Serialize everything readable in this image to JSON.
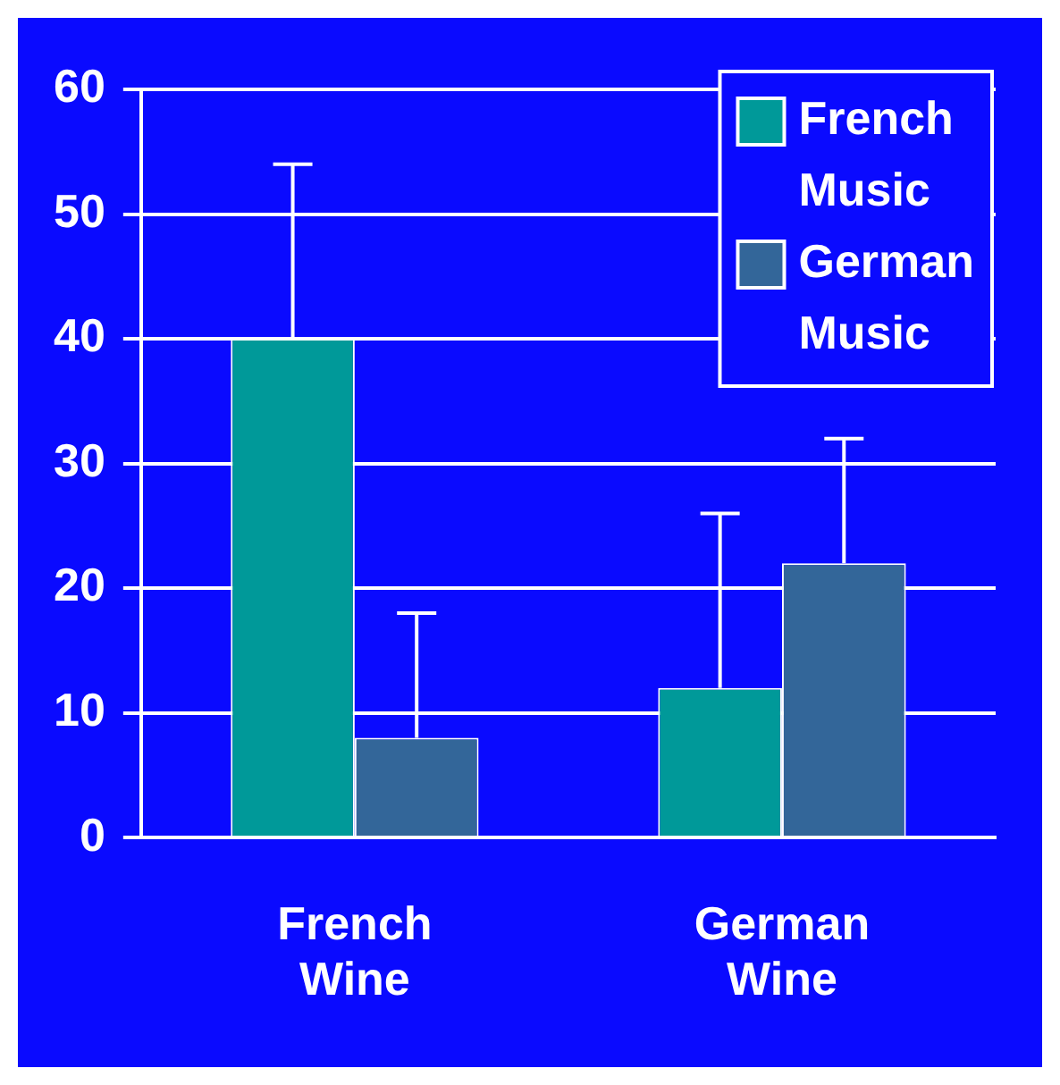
{
  "chart_data": {
    "type": "bar",
    "categories": [
      "French Wine",
      "German Wine"
    ],
    "series": [
      {
        "name": "French Music",
        "color": "#009999",
        "values": [
          40,
          12
        ],
        "errors": [
          [
            40,
            54
          ],
          [
            12,
            26
          ]
        ]
      },
      {
        "name": "German Music",
        "color": "#336699",
        "values": [
          8,
          22
        ],
        "errors": [
          [
            8,
            18
          ],
          [
            22,
            32
          ]
        ]
      }
    ],
    "ylim": [
      0,
      60
    ],
    "yticks": [
      0,
      10,
      20,
      30,
      40,
      50,
      60
    ],
    "grid": "y",
    "legend": "top right"
  }
}
